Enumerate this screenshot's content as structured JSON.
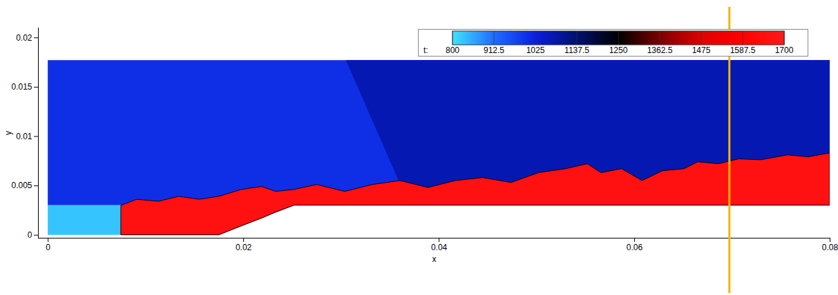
{
  "chart_data": {
    "type": "contour",
    "xlabel": "x",
    "ylabel": "y",
    "xlim": [
      -0.001,
      0.08
    ],
    "xticks": [
      0,
      0.02,
      0.04,
      0.06,
      0.08
    ],
    "ylim": [
      -0.0003,
      0.021
    ],
    "yticks": [
      0,
      0.005,
      0.01,
      0.015,
      0.02
    ],
    "colorbar": {
      "label": "t:",
      "range": [
        800,
        1700
      ],
      "ticks": [
        800,
        912.5,
        1025,
        1137.5,
        1250,
        1362.5,
        1475,
        1587.5,
        1700
      ],
      "colors": [
        "#3fe4ff",
        "#1f6cff",
        "#0a1ee0",
        "#00106e",
        "#000000",
        "#7a0000",
        "#e00000",
        "#ff0000",
        "#ff1a1a"
      ]
    },
    "regions": [
      {
        "t": 1000,
        "x": [
          0,
          0.0075,
          0.0075,
          0.0175,
          0.0252,
          0.08
        ],
        "y1": [
          0.003,
          0.003,
          0,
          0,
          0.003,
          0.003
        ],
        "y2": [
          0.0177,
          0.0177,
          0.0177,
          0.0177,
          0.0177,
          0.0177
        ]
      },
      {
        "t": 1070,
        "x": [
          0.0305,
          0.037,
          0.08
        ],
        "y1": [
          0.0177,
          0.003,
          0.003
        ],
        "y2": [
          0.0177,
          0.0177,
          0.0177
        ]
      },
      {
        "t": 830,
        "x": [
          0,
          0.0075
        ],
        "y1": [
          0,
          0
        ],
        "y2": [
          0.003,
          0.003
        ]
      },
      {
        "t": 1660,
        "x": [
          0.0075,
          0.0091,
          0.0113,
          0.0134,
          0.0155,
          0.0175,
          0.0198,
          0.0219,
          0.0233,
          0.0252,
          0.0275,
          0.0304,
          0.0332,
          0.036,
          0.0389,
          0.0417,
          0.0445,
          0.0474,
          0.0502,
          0.053,
          0.0552,
          0.0566,
          0.0587,
          0.0608,
          0.0629,
          0.0651,
          0.0665,
          0.0686,
          0.0707,
          0.0729,
          0.0757,
          0.0778,
          0.08
        ],
        "y1": [
          0,
          0,
          0,
          0,
          0,
          0,
          0.0009,
          0.0017,
          0.0023,
          0.003,
          0.003,
          0.003,
          0.003,
          0.003,
          0.003,
          0.003,
          0.003,
          0.003,
          0.003,
          0.003,
          0.003,
          0.003,
          0.003,
          0.003,
          0.003,
          0.003,
          0.003,
          0.003,
          0.003,
          0.003,
          0.003,
          0.003,
          0.003
        ],
        "y2": [
          0.003,
          0.0036,
          0.0034,
          0.0039,
          0.0036,
          0.0039,
          0.0046,
          0.0049,
          0.0044,
          0.0046,
          0.0051,
          0.0044,
          0.0051,
          0.0055,
          0.0048,
          0.0055,
          0.0058,
          0.0053,
          0.0063,
          0.0067,
          0.0072,
          0.0063,
          0.0067,
          0.0055,
          0.0065,
          0.0067,
          0.0074,
          0.0072,
          0.0077,
          0.0076,
          0.0081,
          0.0079,
          0.0083
        ]
      }
    ],
    "vline": {
      "x": 0.0697,
      "y1": -0.0059,
      "y2": 0.0231,
      "color": "#f5b400"
    }
  }
}
